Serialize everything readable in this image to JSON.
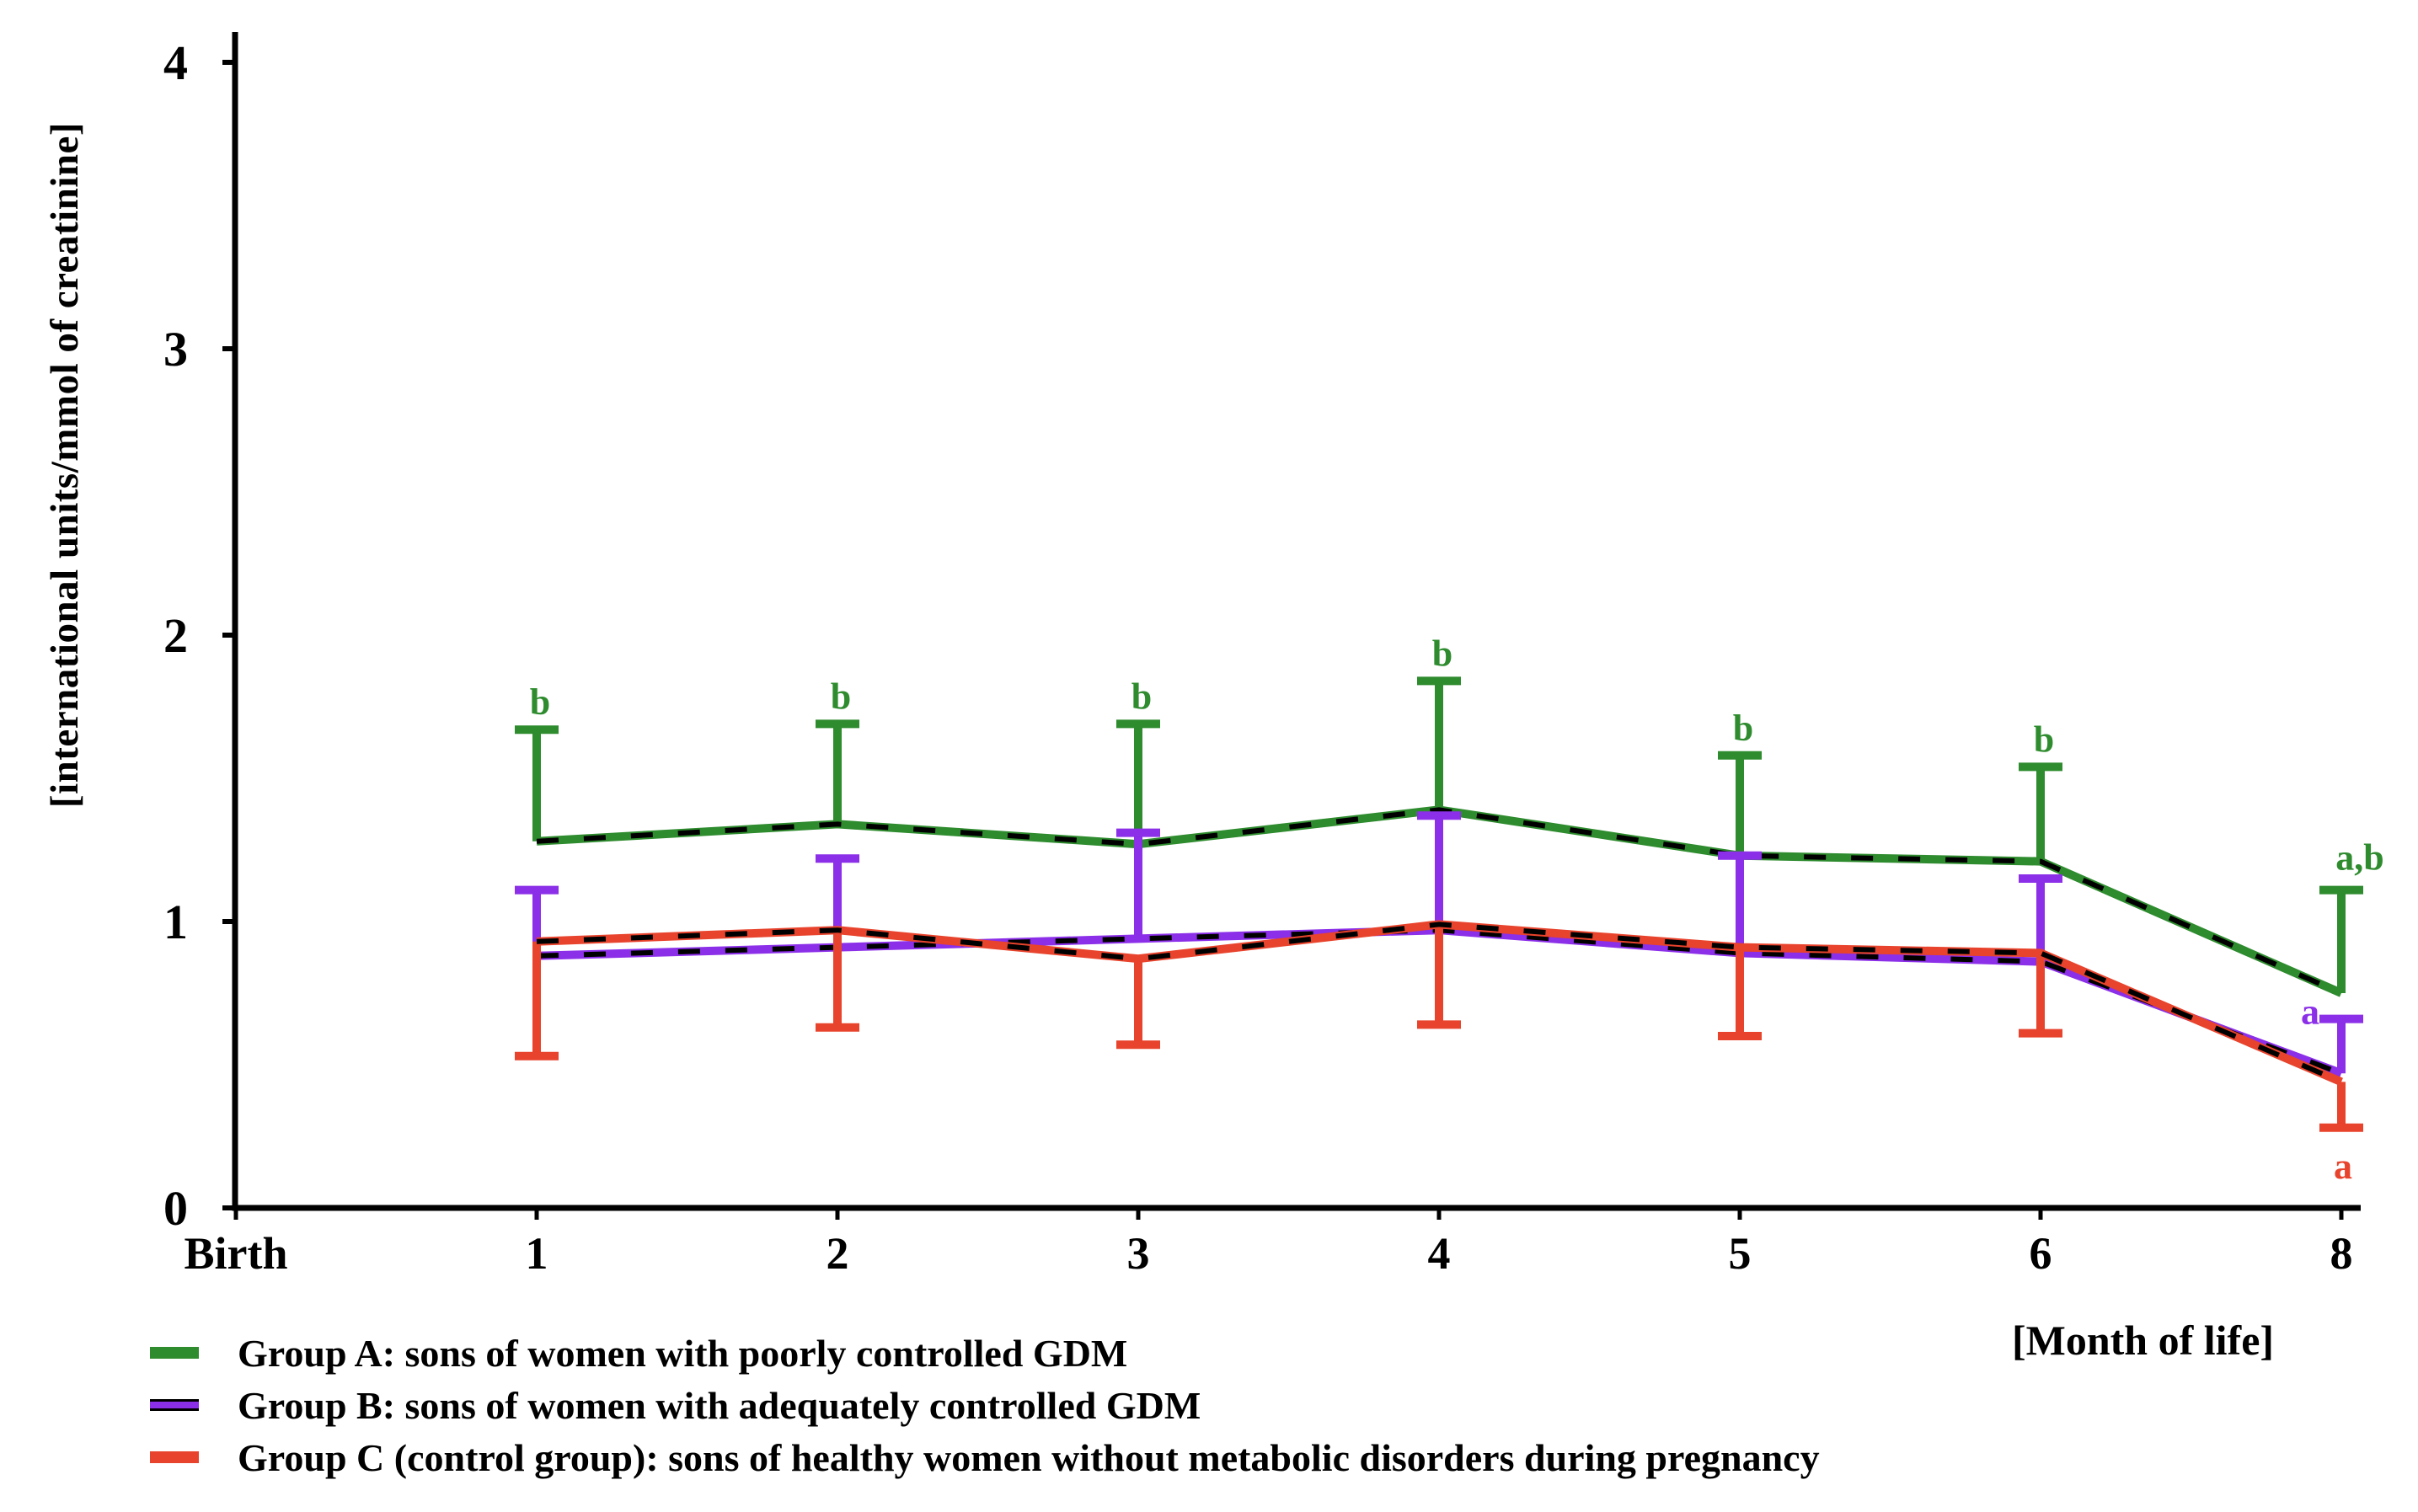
{
  "figure": {
    "y_axis_title": "[international units/mmol of creatinine]",
    "x_axis_title": "[Month of life]",
    "background_color": "#ffffff",
    "axis_color": "#000000"
  },
  "chart_data": {
    "type": "line",
    "title": "",
    "xlabel": "[Month of life]",
    "ylabel": "[international units/mmol of creatinine]",
    "x_tick_labels": [
      "Birth",
      "1",
      "2",
      "3",
      "4",
      "5",
      "6",
      "8"
    ],
    "y_ticks": [
      0,
      1,
      2,
      3,
      4
    ],
    "ylim": [
      0,
      4
    ],
    "grid": false,
    "legend_position": "bottom-left",
    "series": [
      {
        "name": "Group A: sons of women with poorly controlled GDM",
        "color": "#2e8b2e",
        "line_style": "solid-with-black-dashes",
        "data_start_slot": 1,
        "values": [
          1.28,
          1.34,
          1.27,
          1.39,
          1.23,
          1.21,
          0.75
        ],
        "error_upper": [
          1.67,
          1.69,
          1.69,
          1.84,
          1.58,
          1.54,
          1.11
        ],
        "error_lower": null,
        "sig_labels": [
          "b",
          "b",
          "b",
          "b",
          "b",
          "b",
          "a,b"
        ]
      },
      {
        "name": "Group B: sons of women with adequately controlled GDM",
        "color": "#8b2fe8",
        "line_style": "solid-with-black-dashes",
        "data_start_slot": 1,
        "values": [
          0.88,
          0.91,
          0.94,
          0.97,
          0.89,
          0.86,
          0.47
        ],
        "error_upper": [
          1.11,
          1.22,
          1.31,
          1.37,
          1.23,
          1.15,
          0.66
        ],
        "error_lower": null,
        "sig_labels": [
          null,
          null,
          null,
          null,
          null,
          null,
          "a"
        ]
      },
      {
        "name": "Group C (control group): sons of healthy women without metabolic disorders during pregnancy",
        "color": "#e8432c",
        "line_style": "solid-with-black-dashes",
        "data_start_slot": 1,
        "values": [
          0.93,
          0.97,
          0.87,
          0.99,
          0.91,
          0.89,
          0.44
        ],
        "error_upper": null,
        "error_lower": [
          0.53,
          0.63,
          0.57,
          0.64,
          0.6,
          0.61,
          0.28
        ],
        "sig_labels": [
          null,
          null,
          null,
          null,
          null,
          null,
          "a"
        ]
      }
    ]
  }
}
